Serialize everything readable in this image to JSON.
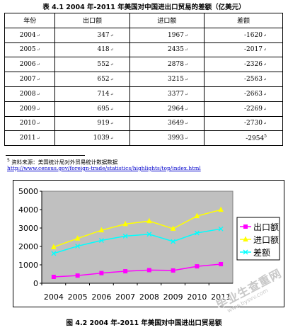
{
  "table": {
    "caption": "表 4.1 2004 年-2011 年美国对中国进出口贸易的差额（亿美元）",
    "headers": [
      "年份",
      "出口额",
      "进口额",
      "差额"
    ],
    "rows": [
      [
        "2004",
        "347",
        "1967",
        "-1620"
      ],
      [
        "2005",
        "418",
        "2435",
        "-2017"
      ],
      [
        "2006",
        "552",
        "2878",
        "-2326"
      ],
      [
        "2007",
        "652",
        "3215",
        "-2563"
      ],
      [
        "2008",
        "714",
        "3377",
        "-2663"
      ],
      [
        "2009",
        "695",
        "2964",
        "-2269"
      ],
      [
        "2010",
        "919",
        "3649",
        "-2730"
      ],
      [
        "2011",
        "1039",
        "3993",
        "-2954"
      ]
    ],
    "last_note_mark": "5"
  },
  "footnote": {
    "marker": "5",
    "source_text": "资料来源：美国统计局对外贸易统计数据数据",
    "link": "http://www.census.gov/foreign-trade/statistics/highlights/top/index.html"
  },
  "chart_data": {
    "type": "line",
    "categories": [
      "2004",
      "2005",
      "2006",
      "2007",
      "2008",
      "2009",
      "2010",
      "2011"
    ],
    "ylim": [
      0,
      5000
    ],
    "yticks": [
      "0",
      "1000",
      "2000",
      "3000",
      "4000",
      "5000"
    ],
    "series": [
      {
        "name": "出口额",
        "color": "#ff00ff",
        "marker": "square",
        "values": [
          347,
          418,
          552,
          652,
          714,
          695,
          919,
          1039
        ]
      },
      {
        "name": "进口额",
        "color": "#ffff00",
        "marker": "triangle",
        "values": [
          1967,
          2435,
          2878,
          3215,
          3377,
          2964,
          3649,
          3993
        ]
      },
      {
        "name": "差额",
        "color": "#00ffff",
        "marker": "x",
        "values": [
          1620,
          2017,
          2326,
          2563,
          2663,
          2269,
          2730,
          2954
        ]
      }
    ],
    "legend": "right",
    "grid": false,
    "title": "图 4.2 2004 年-2011 年美国对中国进出口贸易额"
  },
  "watermark": {
    "text": "毕业生查重网",
    "url": "www.bysvv.com"
  }
}
